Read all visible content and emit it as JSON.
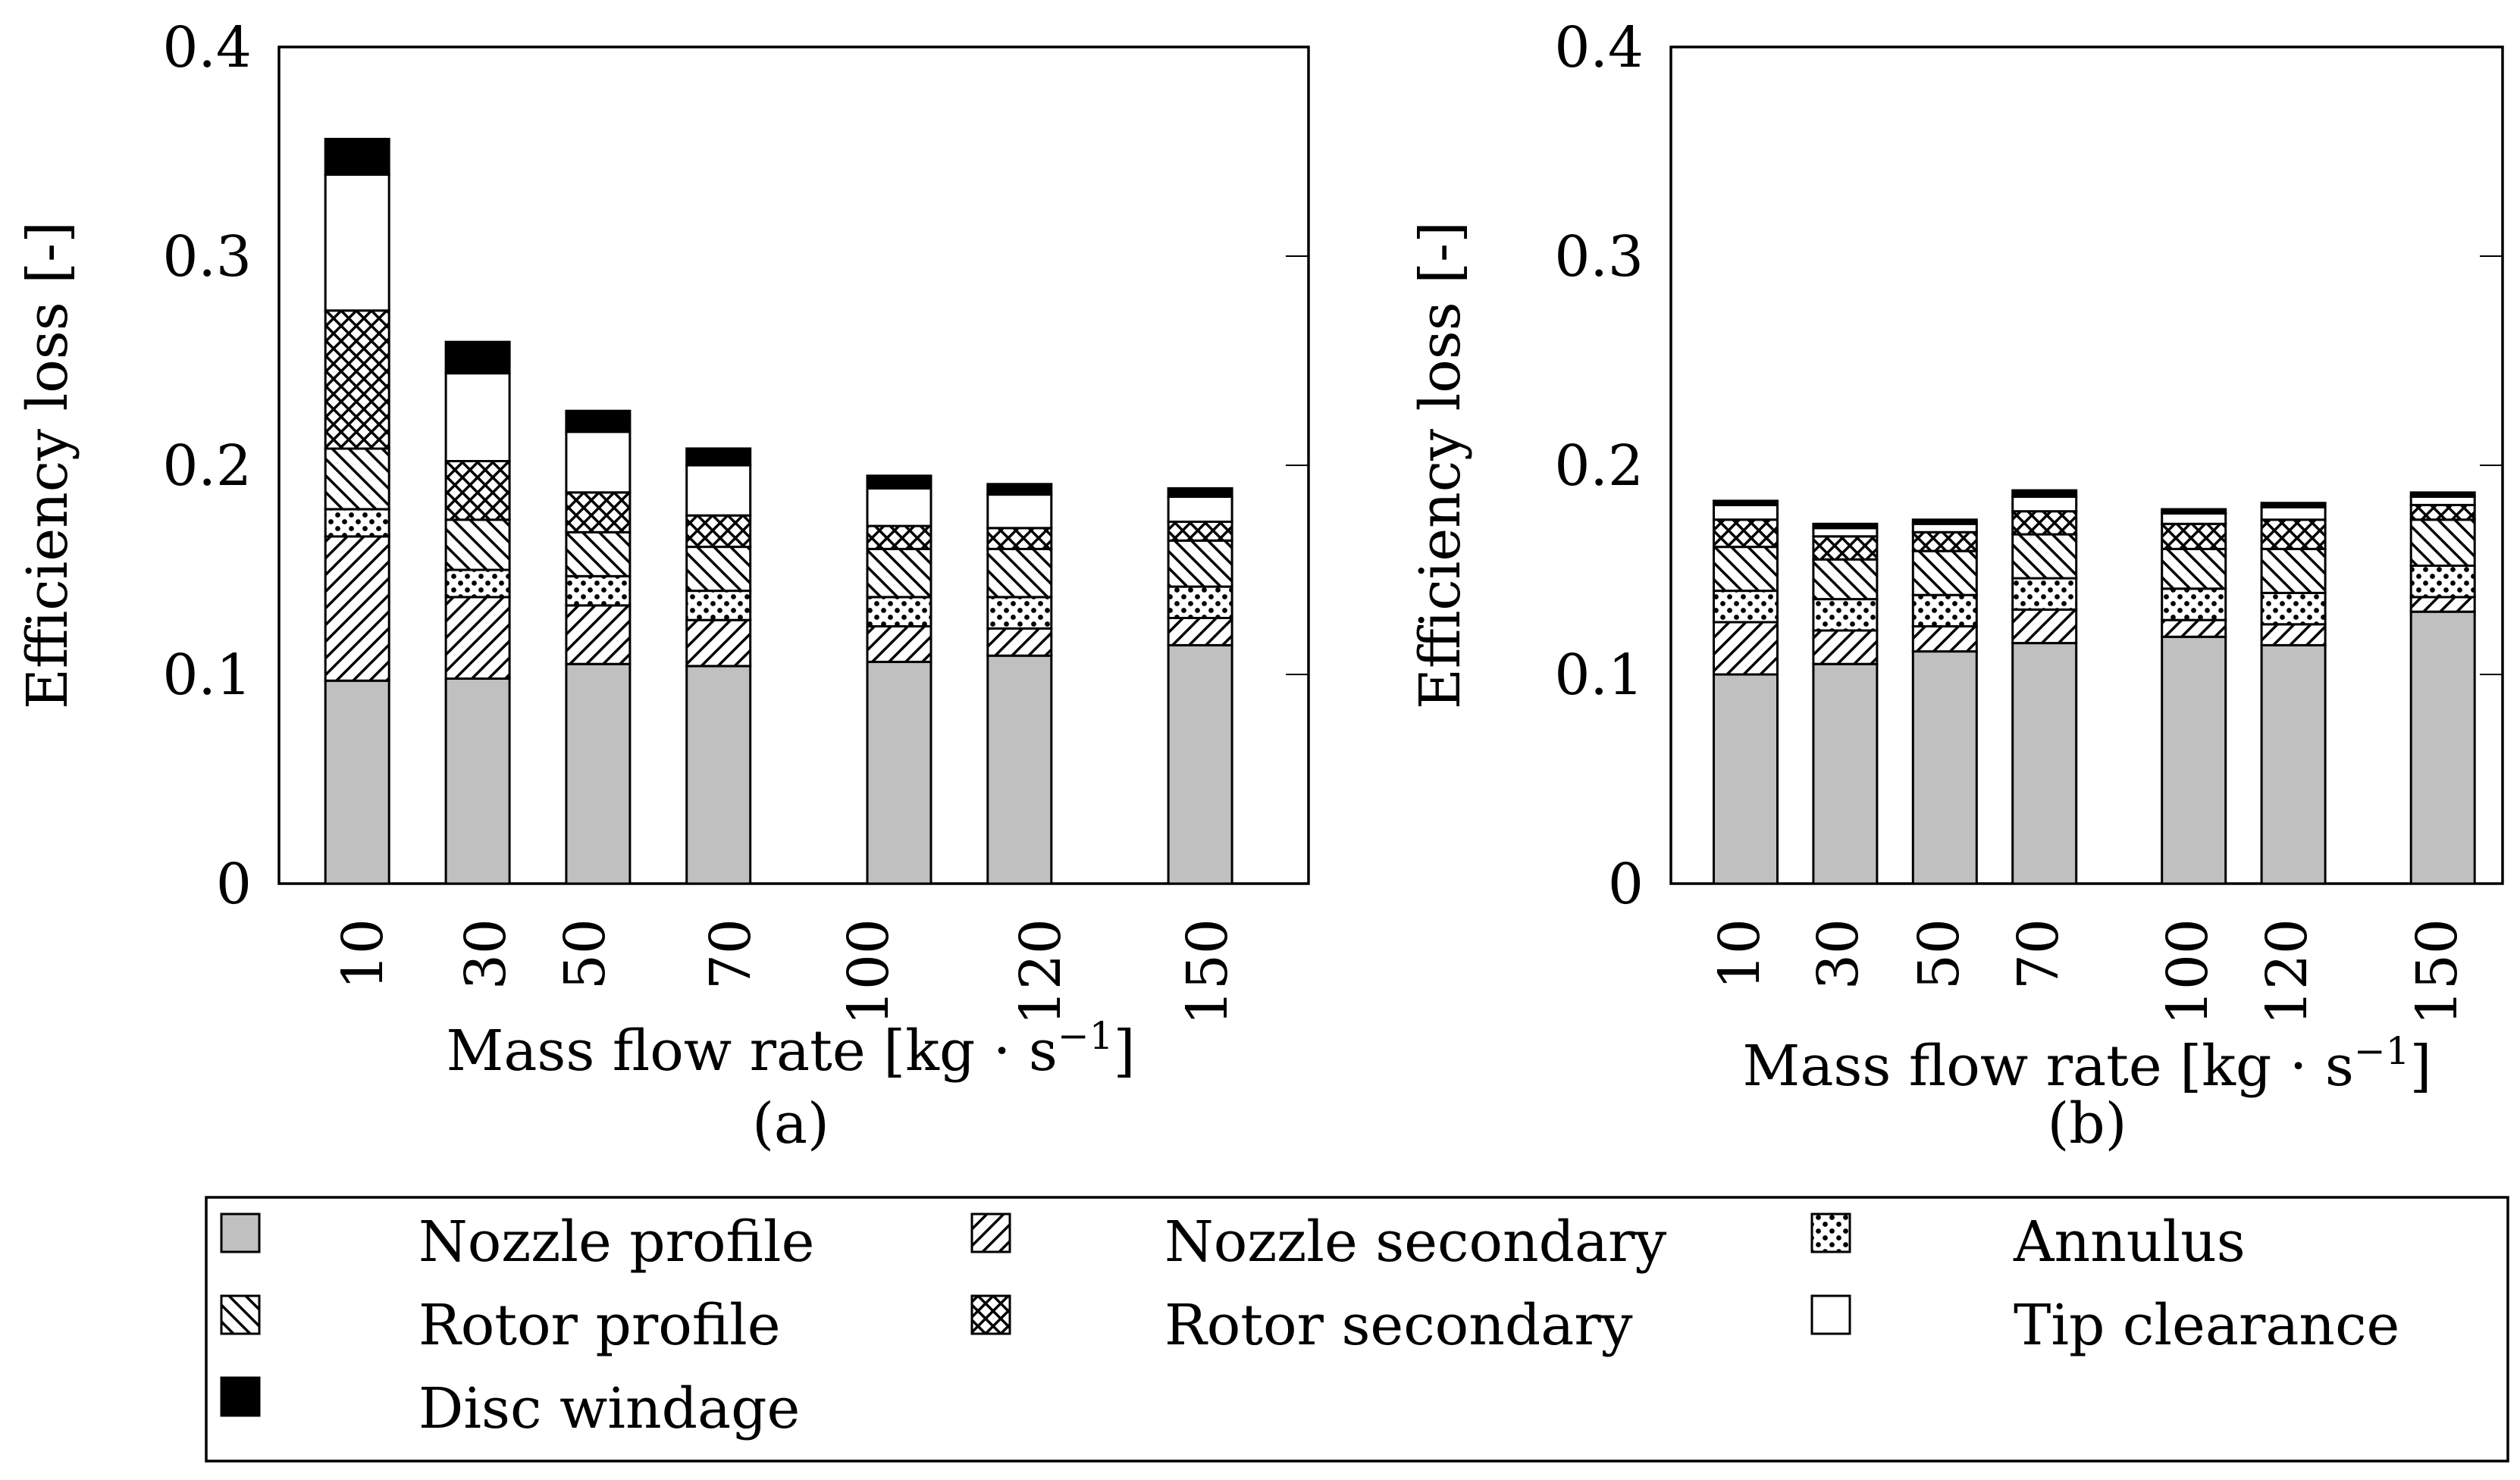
{
  "chart_data": [
    {
      "panel": "(a)",
      "type": "bar",
      "stacked": true,
      "xlabel_text": "Mass flow rate [kg · s",
      "xlabel_exponent": "−1",
      "xlabel_close": "]",
      "ylabel": "Efficiency loss [-]",
      "ylim": [
        0,
        0.4
      ],
      "y_ticks": [
        "0",
        "0.1",
        "0.2",
        "0.3",
        "0.4"
      ],
      "grid": false,
      "categories": [
        "10",
        "30",
        "50",
        "70",
        "100",
        "120",
        "150"
      ],
      "series": [
        {
          "name": "Nozzle profile",
          "values": [
            0.097,
            0.098,
            0.105,
            0.104,
            0.106,
            0.109,
            0.114
          ]
        },
        {
          "name": "Nozzle secondary",
          "values": [
            0.069,
            0.039,
            0.028,
            0.022,
            0.017,
            0.013,
            0.013
          ]
        },
        {
          "name": "Annulus",
          "values": [
            0.013,
            0.013,
            0.014,
            0.014,
            0.014,
            0.015,
            0.015
          ]
        },
        {
          "name": "Rotor profile",
          "values": [
            0.029,
            0.024,
            0.021,
            0.021,
            0.023,
            0.023,
            0.022
          ]
        },
        {
          "name": "Rotor secondary",
          "values": [
            0.066,
            0.028,
            0.019,
            0.015,
            0.011,
            0.01,
            0.009
          ]
        },
        {
          "name": "Tip clearance",
          "values": [
            0.065,
            0.042,
            0.029,
            0.024,
            0.018,
            0.016,
            0.012
          ]
        },
        {
          "name": "Disc windage",
          "values": [
            0.017,
            0.015,
            0.01,
            0.008,
            0.006,
            0.005,
            0.004
          ]
        }
      ]
    },
    {
      "panel": "(b)",
      "type": "bar",
      "stacked": true,
      "xlabel_text": "Mass flow rate [kg · s",
      "xlabel_exponent": "−1",
      "xlabel_close": "]",
      "ylabel": "Efficiency loss [-]",
      "ylim": [
        0,
        0.4
      ],
      "y_ticks": [
        "0",
        "0.1",
        "0.2",
        "0.3",
        "0.4"
      ],
      "grid": false,
      "categories": [
        "10",
        "30",
        "50",
        "70",
        "100",
        "120",
        "150"
      ],
      "series": [
        {
          "name": "Nozzle profile",
          "values": [
            0.1,
            0.105,
            0.111,
            0.115,
            0.118,
            0.114,
            0.13
          ]
        },
        {
          "name": "Nozzle secondary",
          "values": [
            0.025,
            0.016,
            0.012,
            0.016,
            0.008,
            0.01,
            0.007
          ]
        },
        {
          "name": "Annulus",
          "values": [
            0.015,
            0.015,
            0.015,
            0.015,
            0.015,
            0.015,
            0.015
          ]
        },
        {
          "name": "Rotor profile",
          "values": [
            0.021,
            0.019,
            0.021,
            0.021,
            0.019,
            0.021,
            0.022
          ]
        },
        {
          "name": "Rotor secondary",
          "values": [
            0.013,
            0.011,
            0.009,
            0.011,
            0.012,
            0.014,
            0.007
          ]
        },
        {
          "name": "Tip clearance",
          "values": [
            0.007,
            0.004,
            0.004,
            0.007,
            0.005,
            0.006,
            0.004
          ]
        },
        {
          "name": "Disc windage",
          "values": [
            0.002,
            0.002,
            0.002,
            0.003,
            0.002,
            0.002,
            0.002
          ]
        }
      ]
    }
  ],
  "legend": {
    "entries": [
      {
        "name": "Nozzle profile",
        "pattern": "solid-gray"
      },
      {
        "name": "Nozzle secondary",
        "pattern": "north-east-lines"
      },
      {
        "name": "Annulus",
        "pattern": "dots"
      },
      {
        "name": "Rotor profile",
        "pattern": "north-west-lines"
      },
      {
        "name": "Rotor secondary",
        "pattern": "crosshatch"
      },
      {
        "name": "Tip clearance",
        "pattern": "white"
      },
      {
        "name": "Disc windage",
        "pattern": "solid-black"
      }
    ]
  },
  "colors": {
    "nozzle_profile": "#c0c0c0",
    "disc_windage": "#000000",
    "background": "#ffffff",
    "stroke": "#000000"
  }
}
